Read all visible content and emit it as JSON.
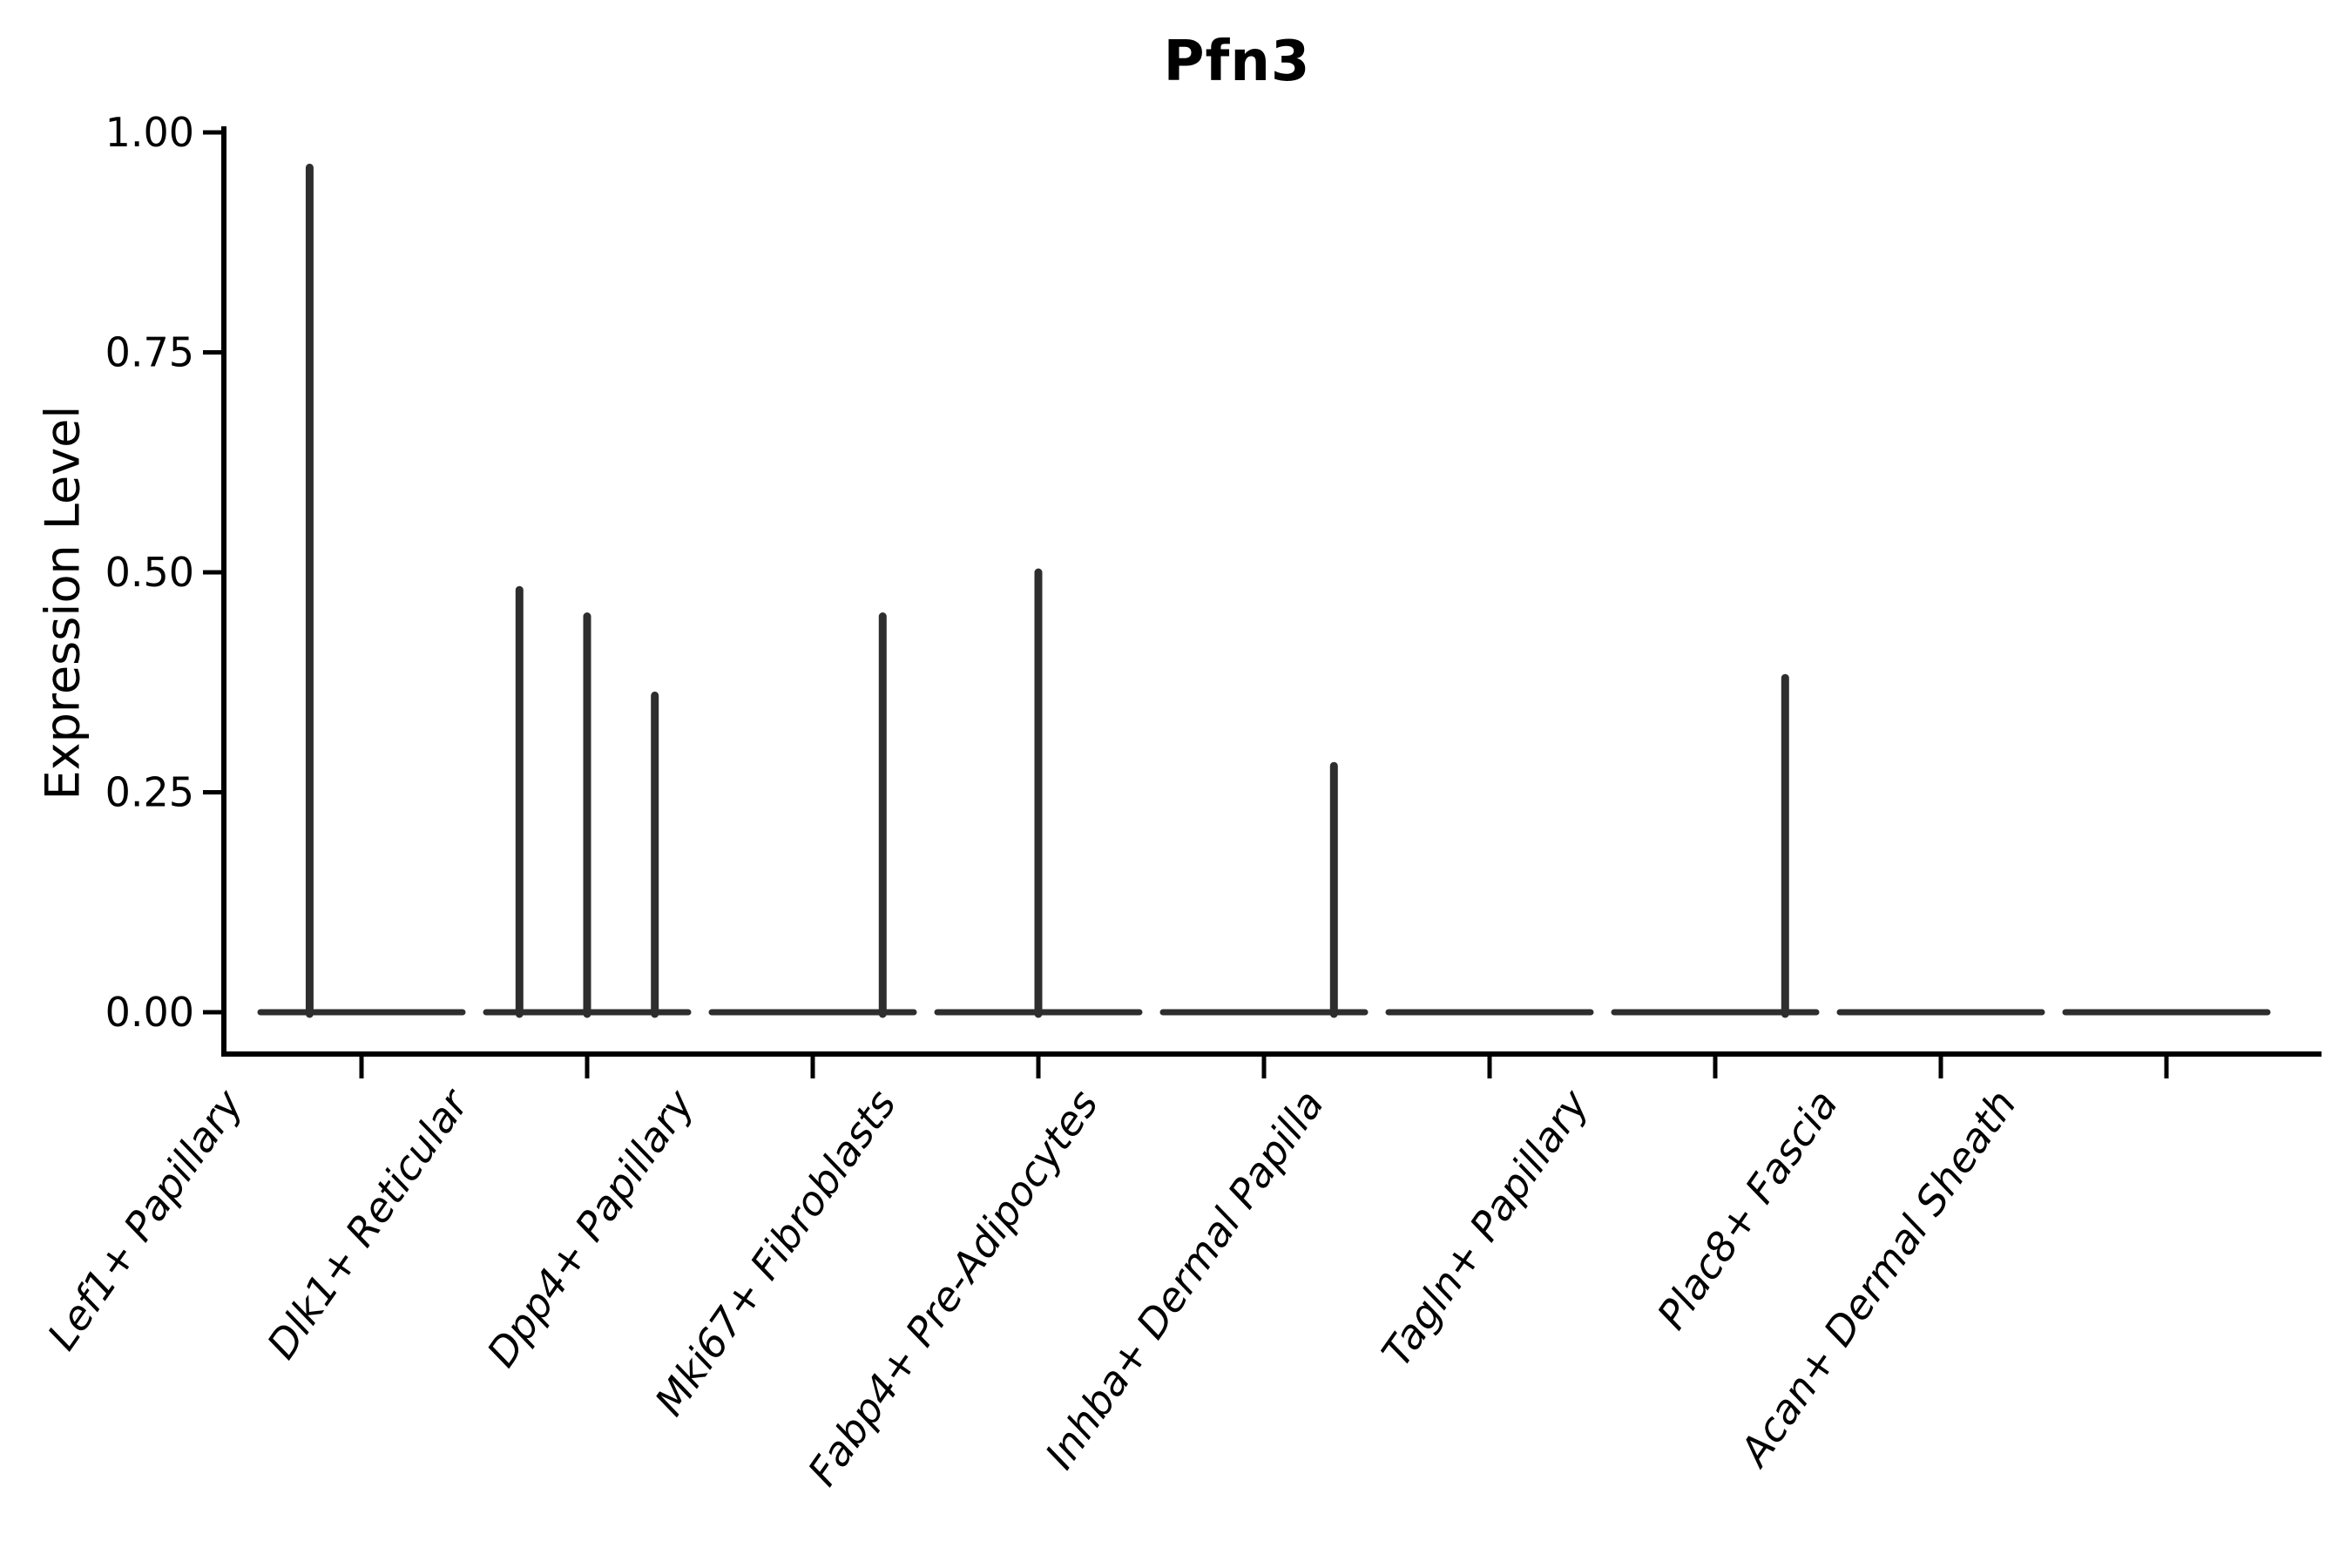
{
  "figure": {
    "background": "#ffffff"
  },
  "chart_data": {
    "type": "violin",
    "title": "Pfn3",
    "ylabel": "Expression Level",
    "xlabel": "",
    "ylim": [
      0.0,
      1.0
    ],
    "grid": false,
    "legend": "none",
    "yticks": [
      {
        "value": 1.0,
        "label": "1.00"
      },
      {
        "value": 0.75,
        "label": "0.75"
      },
      {
        "value": 0.5,
        "label": "0.50"
      },
      {
        "value": 0.25,
        "label": "0.25"
      },
      {
        "value": 0.0,
        "label": "0.00"
      }
    ],
    "categories": [
      "Lef1+ Papillary",
      "Dlk1+ Reticular",
      "Dpp4+ Papillary",
      "Mki67+ Fibroblasts",
      "Fabp4+ Pre-Adipocytes",
      "Inhba+ Dermal Papilla",
      "Tagln+ Papillary",
      "Plac8+ Fascia",
      "Acan+ Dermal Sheath"
    ],
    "violins": [
      {
        "category": "Lef1+ Papillary",
        "base_value": 0.0,
        "spikes": [
          {
            "offset": -0.23,
            "value": 0.96
          }
        ]
      },
      {
        "category": "Dlk1+ Reticular",
        "base_value": 0.0,
        "spikes": [
          {
            "offset": -0.3,
            "value": 0.48
          },
          {
            "offset": 0.0,
            "value": 0.45
          },
          {
            "offset": 0.3,
            "value": 0.36
          }
        ]
      },
      {
        "category": "Dpp4+ Papillary",
        "base_value": 0.0,
        "spikes": [
          {
            "offset": 0.31,
            "value": 0.45
          }
        ]
      },
      {
        "category": "Mki67+ Fibroblasts",
        "base_value": 0.0,
        "spikes": [
          {
            "offset": 0.0,
            "value": 0.5
          }
        ]
      },
      {
        "category": "Fabp4+ Pre-Adipocytes",
        "base_value": 0.0,
        "spikes": [
          {
            "offset": 0.31,
            "value": 0.28
          }
        ]
      },
      {
        "category": "Inhba+ Dermal Papilla",
        "base_value": 0.0,
        "spikes": []
      },
      {
        "category": "Tagln+ Papillary",
        "base_value": 0.0,
        "spikes": [
          {
            "offset": 0.31,
            "value": 0.38
          }
        ]
      },
      {
        "category": "Plac8+ Fascia",
        "base_value": 0.0,
        "spikes": []
      },
      {
        "category": "Acan+ Dermal Sheath",
        "base_value": 0.0,
        "spikes": []
      }
    ],
    "colors": {
      "violin_line": "#2e2e2e",
      "axis": "#000000",
      "text": "#000000"
    }
  }
}
